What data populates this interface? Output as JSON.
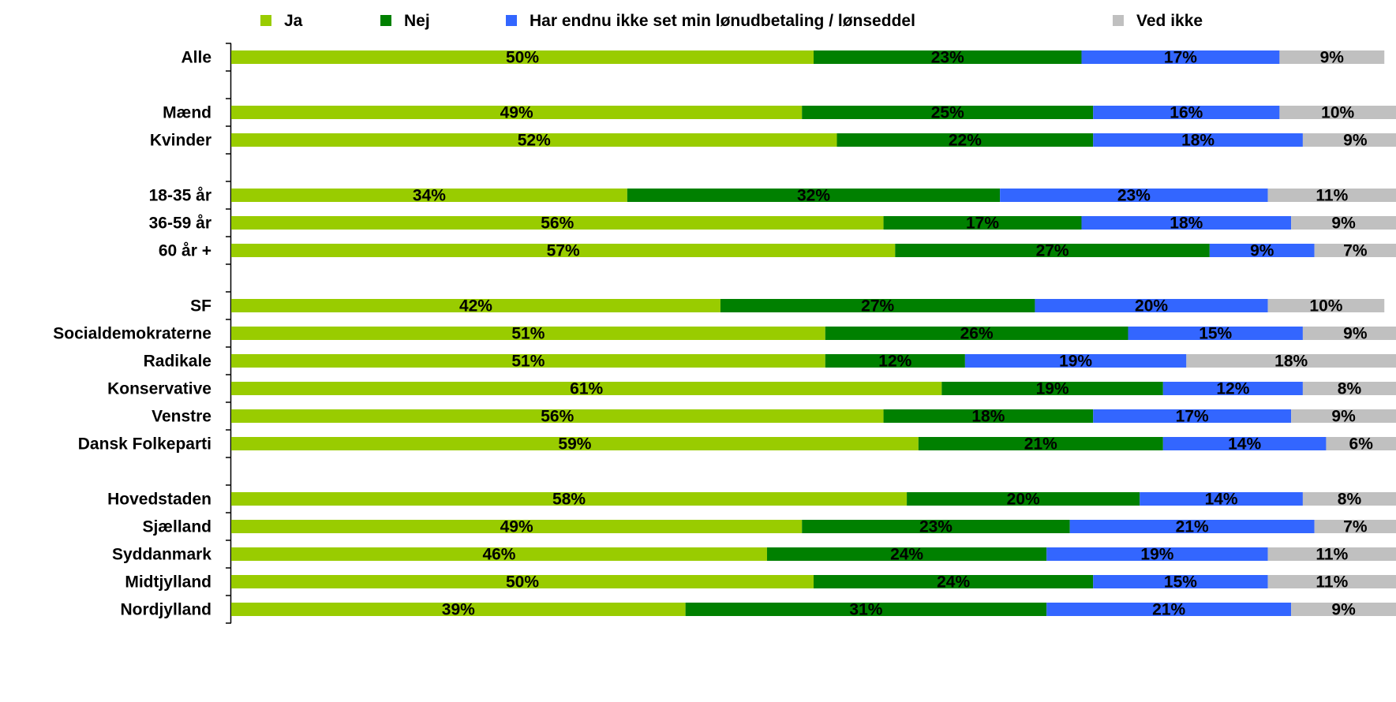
{
  "chart_data": {
    "type": "bar",
    "orientation": "horizontal",
    "stacked": true,
    "unit": "%",
    "xlim": [
      0,
      100
    ],
    "grid": false,
    "legend_position": "top",
    "series": [
      {
        "name": "Ja",
        "color": "#99cc00"
      },
      {
        "name": "Nej",
        "color": "#008000"
      },
      {
        "name": "Har endnu ikke set min lønudbetaling / lønseddel",
        "color": "#3366ff"
      },
      {
        "name": "Ved ikke",
        "color": "#c0c0c0"
      }
    ],
    "rows": [
      {
        "label": "Alle",
        "values": [
          50,
          23,
          17,
          9
        ]
      },
      {
        "label": "",
        "values": []
      },
      {
        "label": "Mænd",
        "values": [
          49,
          25,
          16,
          10
        ]
      },
      {
        "label": "Kvinder",
        "values": [
          52,
          22,
          18,
          9
        ]
      },
      {
        "label": "",
        "values": []
      },
      {
        "label": "18-35 år",
        "values": [
          34,
          32,
          23,
          11
        ]
      },
      {
        "label": "36-59 år",
        "values": [
          56,
          17,
          18,
          9
        ]
      },
      {
        "label": "60 år +",
        "values": [
          57,
          27,
          9,
          7
        ]
      },
      {
        "label": "",
        "values": []
      },
      {
        "label": "SF",
        "values": [
          42,
          27,
          20,
          10
        ]
      },
      {
        "label": "Socialdemokraterne",
        "values": [
          51,
          26,
          15,
          9
        ]
      },
      {
        "label": "Radikale",
        "values": [
          51,
          12,
          19,
          18
        ]
      },
      {
        "label": "Konservative",
        "values": [
          61,
          19,
          12,
          8
        ]
      },
      {
        "label": "Venstre",
        "values": [
          56,
          18,
          17,
          9
        ]
      },
      {
        "label": "Dansk Folkeparti",
        "values": [
          59,
          21,
          14,
          6
        ]
      },
      {
        "label": "",
        "values": []
      },
      {
        "label": "Hovedstaden",
        "values": [
          58,
          20,
          14,
          8
        ]
      },
      {
        "label": "Sjælland",
        "values": [
          49,
          23,
          21,
          7
        ]
      },
      {
        "label": "Syddanmark",
        "values": [
          46,
          24,
          19,
          11
        ]
      },
      {
        "label": "Midtjylland",
        "values": [
          50,
          24,
          15,
          11
        ]
      },
      {
        "label": "Nordjylland",
        "values": [
          39,
          31,
          21,
          9
        ]
      }
    ]
  }
}
